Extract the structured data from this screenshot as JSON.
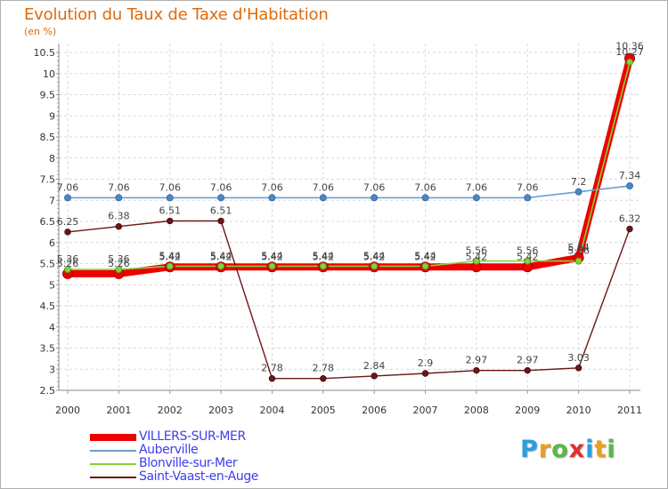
{
  "chart_data": {
    "type": "line",
    "title": "Evolution du Taux de Taxe d'Habitation",
    "subtitle": "(en %)",
    "xlabel": "",
    "ylabel": "",
    "categories": [
      "2000",
      "2001",
      "2002",
      "2003",
      "2004",
      "2005",
      "2006",
      "2007",
      "2008",
      "2009",
      "2010",
      "2011"
    ],
    "ylim": [
      2.5,
      10.5
    ],
    "yticks": [
      "2.5",
      "3",
      "3.5",
      "4",
      "4.5",
      "5",
      "5.5",
      "6",
      "6.5",
      "7",
      "7.5",
      "8",
      "8.5",
      "9",
      "9.5",
      "10",
      "10.5"
    ],
    "grid": true,
    "legend_position": "bottom-left",
    "series": [
      {
        "name": "VILLERS-SUR-MER",
        "color": "#ee0000",
        "values": [
          5.26,
          5.26,
          5.42,
          5.42,
          5.42,
          5.42,
          5.42,
          5.42,
          5.42,
          5.42,
          5.64,
          10.36
        ],
        "labels": [
          "5.26",
          "5.26",
          "5.42",
          "5.42",
          "5.42",
          "5.42",
          "5.42",
          "5.42",
          "5.42",
          "5.42",
          "5.64",
          "10.36"
        ]
      },
      {
        "name": "Auberville",
        "color": "#6a9fcf",
        "values": [
          7.06,
          7.06,
          7.06,
          7.06,
          7.06,
          7.06,
          7.06,
          7.06,
          7.06,
          7.06,
          7.2,
          7.34
        ],
        "labels": [
          "7.06",
          "7.06",
          "7.06",
          "7.06",
          "7.06",
          "7.06",
          "7.06",
          "7.06",
          "7.06",
          "7.06",
          "7.2",
          "7.34"
        ]
      },
      {
        "name": "Blonville-sur-Mer",
        "color": "#86d13c",
        "values": [
          5.36,
          5.36,
          5.44,
          5.44,
          5.44,
          5.44,
          5.44,
          5.44,
          5.56,
          5.56,
          5.56,
          10.27
        ],
        "labels": [
          "5.36",
          "5.36",
          "5.44",
          "5.44",
          "5.44",
          "5.44",
          "5.44",
          "5.44",
          "5.56",
          "5.56",
          "5.56",
          "10.27"
        ]
      },
      {
        "name": "Saint-Vaast-en-Auge",
        "color": "#6a1818",
        "values": [
          6.25,
          6.38,
          6.51,
          6.51,
          2.78,
          2.78,
          2.84,
          2.9,
          2.97,
          2.97,
          3.03,
          6.32
        ],
        "labels": [
          "6.25",
          "6.38",
          "6.51",
          "6.51",
          "2.78",
          "2.78",
          "2.84",
          "2.9",
          "2.97",
          "2.97",
          "3.03",
          "6.32"
        ]
      }
    ]
  },
  "logo": {
    "letters": [
      {
        "ch": "P",
        "color": "#2a9fe0"
      },
      {
        "ch": "r",
        "color": "#e8a020"
      },
      {
        "ch": "o",
        "color": "#58b848"
      },
      {
        "ch": "x",
        "color": "#e03030"
      },
      {
        "ch": "i",
        "color": "#2a9fe0"
      },
      {
        "ch": "t",
        "color": "#e8a020"
      },
      {
        "ch": "i",
        "color": "#58b848"
      }
    ]
  }
}
